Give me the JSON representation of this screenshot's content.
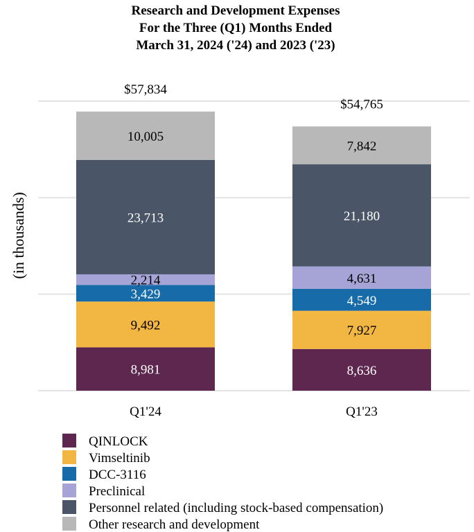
{
  "chart_data": {
    "type": "bar",
    "stacked": true,
    "title_lines": [
      "Research and Development Expenses",
      "For the Three (Q1) Months Ended",
      "March 31, 2024 ('24) and 2023 ('23)"
    ],
    "ylabel": "(in thousands)",
    "xlabel": "",
    "categories": [
      "Q1'24",
      "Q1'23"
    ],
    "ylim": [
      0,
      60000
    ],
    "grid": true,
    "gridlines": [
      0,
      20000,
      40000,
      60000
    ],
    "series": [
      {
        "name": "QINLOCK",
        "color": "#5e2750",
        "label_color": "#ffffff",
        "values": [
          8981,
          8636
        ],
        "labels": [
          "8,981",
          "8,636"
        ]
      },
      {
        "name": "Vimseltinib",
        "color": "#f2b643",
        "label_color": "#000000",
        "values": [
          9492,
          7927
        ],
        "labels": [
          "9,492",
          "7,927"
        ]
      },
      {
        "name": "DCC-3116",
        "color": "#166ba8",
        "label_color": "#ffffff",
        "values": [
          3429,
          4549
        ],
        "labels": [
          "3,429",
          "4,549"
        ]
      },
      {
        "name": "Preclinical",
        "color": "#a6a3d6",
        "label_color": "#000000",
        "values": [
          2214,
          4631
        ],
        "labels": [
          "2,214",
          "4,631"
        ]
      },
      {
        "name": "Personnel related (including stock-based compensation)",
        "color": "#4a5668",
        "label_color": "#ffffff",
        "values": [
          23713,
          21180
        ],
        "labels": [
          "23,713",
          "21,180"
        ]
      },
      {
        "name": "Other research and development",
        "color": "#b8b8b8",
        "label_color": "#000000",
        "values": [
          10005,
          7842
        ],
        "labels": [
          "10,005",
          "7,842"
        ]
      }
    ],
    "totals": [
      57834,
      54765
    ],
    "total_labels": [
      "$57,834",
      "$54,765"
    ],
    "legend_position": "bottom-left"
  }
}
